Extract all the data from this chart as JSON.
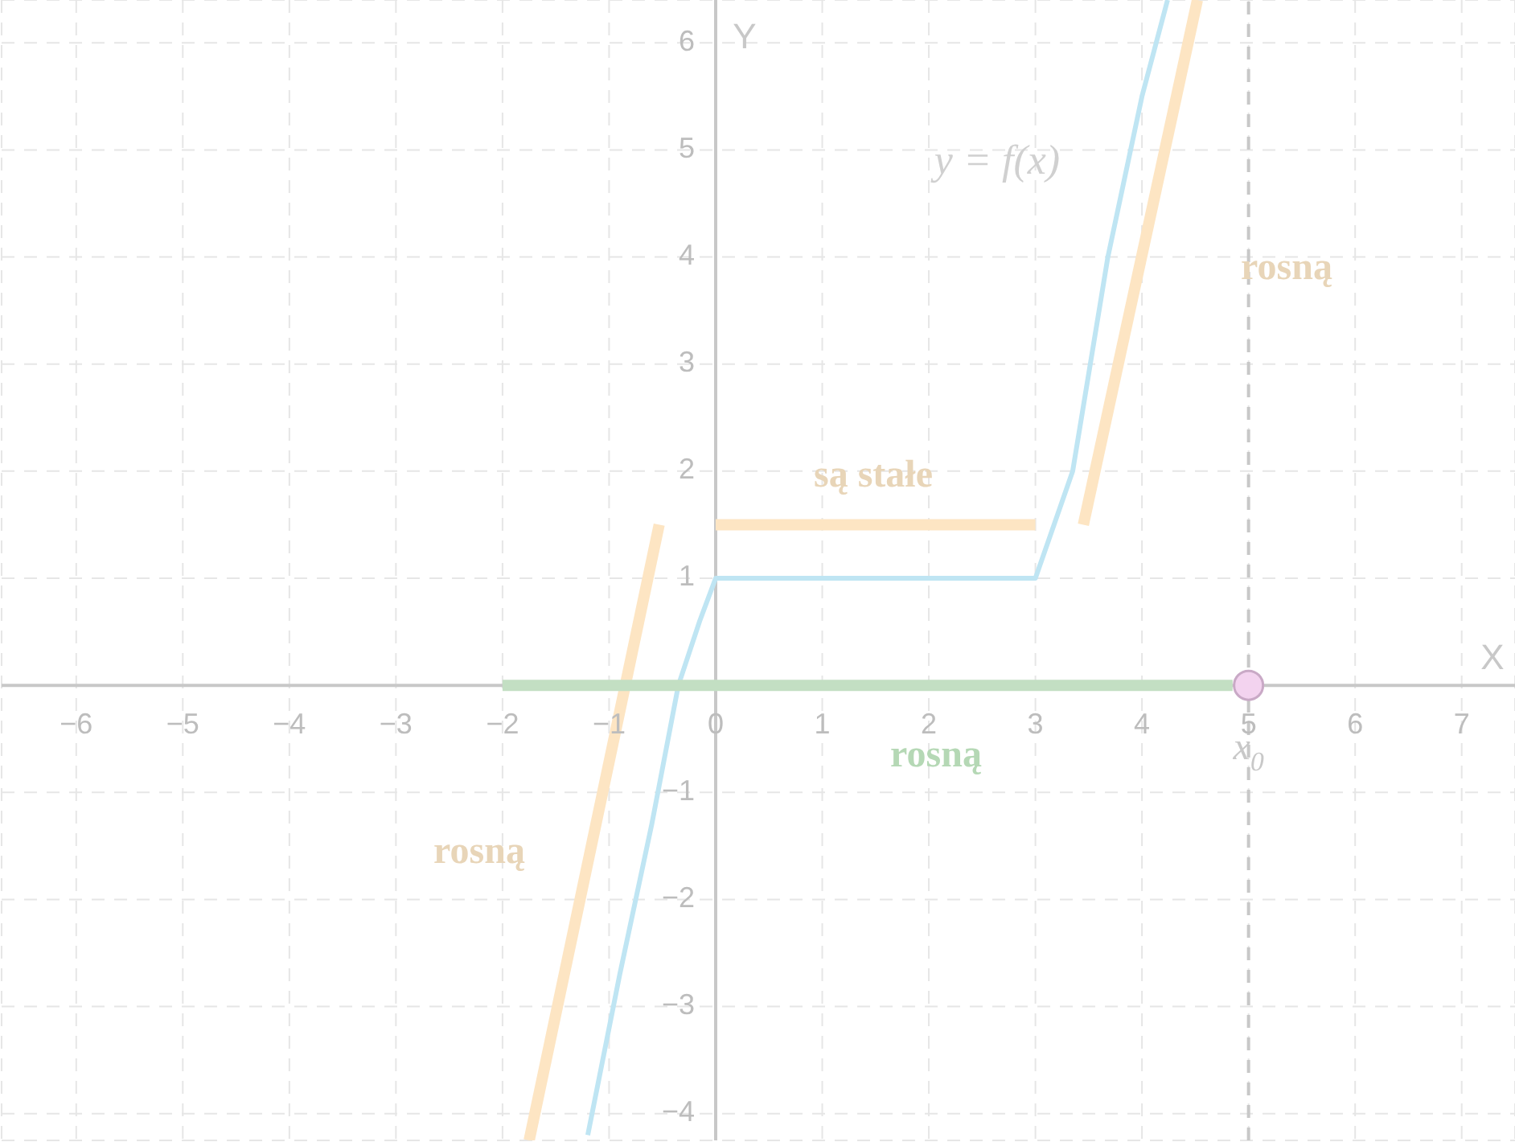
{
  "chart_data": {
    "type": "line",
    "xlabel": "X",
    "ylabel": "Y",
    "xlim": [
      -6.7,
      7.5
    ],
    "ylim": [
      -4.25,
      6.4
    ],
    "xticks": [
      {
        "value": -6,
        "label": "−6"
      },
      {
        "value": -5,
        "label": "−5"
      },
      {
        "value": -4,
        "label": "−4"
      },
      {
        "value": -3,
        "label": "−3"
      },
      {
        "value": -2,
        "label": "−2"
      },
      {
        "value": -1,
        "label": "−1"
      },
      0,
      1,
      2,
      3,
      4,
      5,
      6,
      7
    ],
    "yticks": [
      {
        "value": -4,
        "label": "−4"
      },
      {
        "value": -3,
        "label": "−3"
      },
      {
        "value": -2,
        "label": "−2"
      },
      {
        "value": -1,
        "label": "−1"
      },
      1,
      2,
      3,
      4,
      5,
      6
    ],
    "grid": true,
    "series": [
      {
        "color": "#bfe5f3",
        "x": [
          -1.2,
          -0.9,
          -0.6,
          -0.35,
          -0.15,
          0,
          3,
          3.35,
          3.68,
          4.0,
          4.24
        ],
        "values": [
          -4.2,
          -2.7,
          -1.3,
          0,
          0.6,
          1,
          1,
          2,
          4,
          5.5,
          6.4
        ]
      },
      {
        "color": "#fde5c3",
        "x": [
          -1.75,
          -0.53
        ],
        "values": [
          -4.25,
          1.5
        ]
      },
      {
        "color": "#fde5c3",
        "x": [
          0,
          3
        ],
        "values": [
          1.5,
          1.5
        ]
      },
      {
        "color": "#fde5c3",
        "x": [
          3.45,
          4.52
        ],
        "values": [
          1.5,
          6.4
        ]
      },
      {
        "color": "#c3dfc3",
        "x": [
          -2,
          4.85
        ],
        "values": [
          0,
          0
        ]
      },
      {
        "type": "scatter",
        "color": "#f3d3ef",
        "x": [
          5
        ],
        "values": [
          0
        ]
      }
    ],
    "ref_lines": [
      {
        "axis": "x",
        "value": 5,
        "color": "#c8c8c8",
        "line_style": "dashed"
      }
    ],
    "annotations": [
      "y = f(x)",
      "są stałe",
      "rosną",
      "rosną",
      "rosną",
      {
        "text": "x$_{0}$",
        "x": 5,
        "y": -0.6
      }
    ]
  }
}
